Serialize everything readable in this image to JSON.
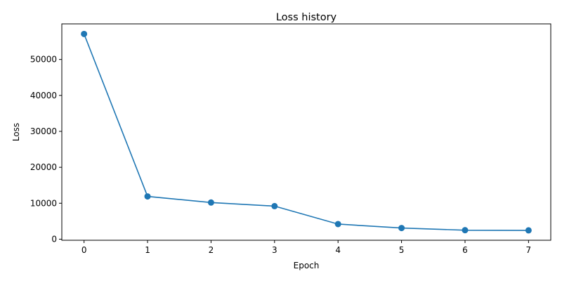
{
  "chart_data": {
    "type": "line",
    "title": "Loss history",
    "xlabel": "Epoch",
    "ylabel": "Loss",
    "x": [
      0,
      1,
      2,
      3,
      4,
      5,
      6,
      7
    ],
    "series": [
      {
        "values": [
          57100,
          11900,
          10200,
          9200,
          4200,
          3100,
          2500,
          2450
        ],
        "color": "#1f77b4",
        "marker": "circle"
      }
    ],
    "xlim": [
      -0.35,
      7.35
    ],
    "ylim": [
      -300,
      59900
    ],
    "xticks": [
      0,
      1,
      2,
      3,
      4,
      5,
      6,
      7
    ],
    "yticks": [
      0,
      10000,
      20000,
      30000,
      40000,
      50000
    ],
    "grid": false
  }
}
